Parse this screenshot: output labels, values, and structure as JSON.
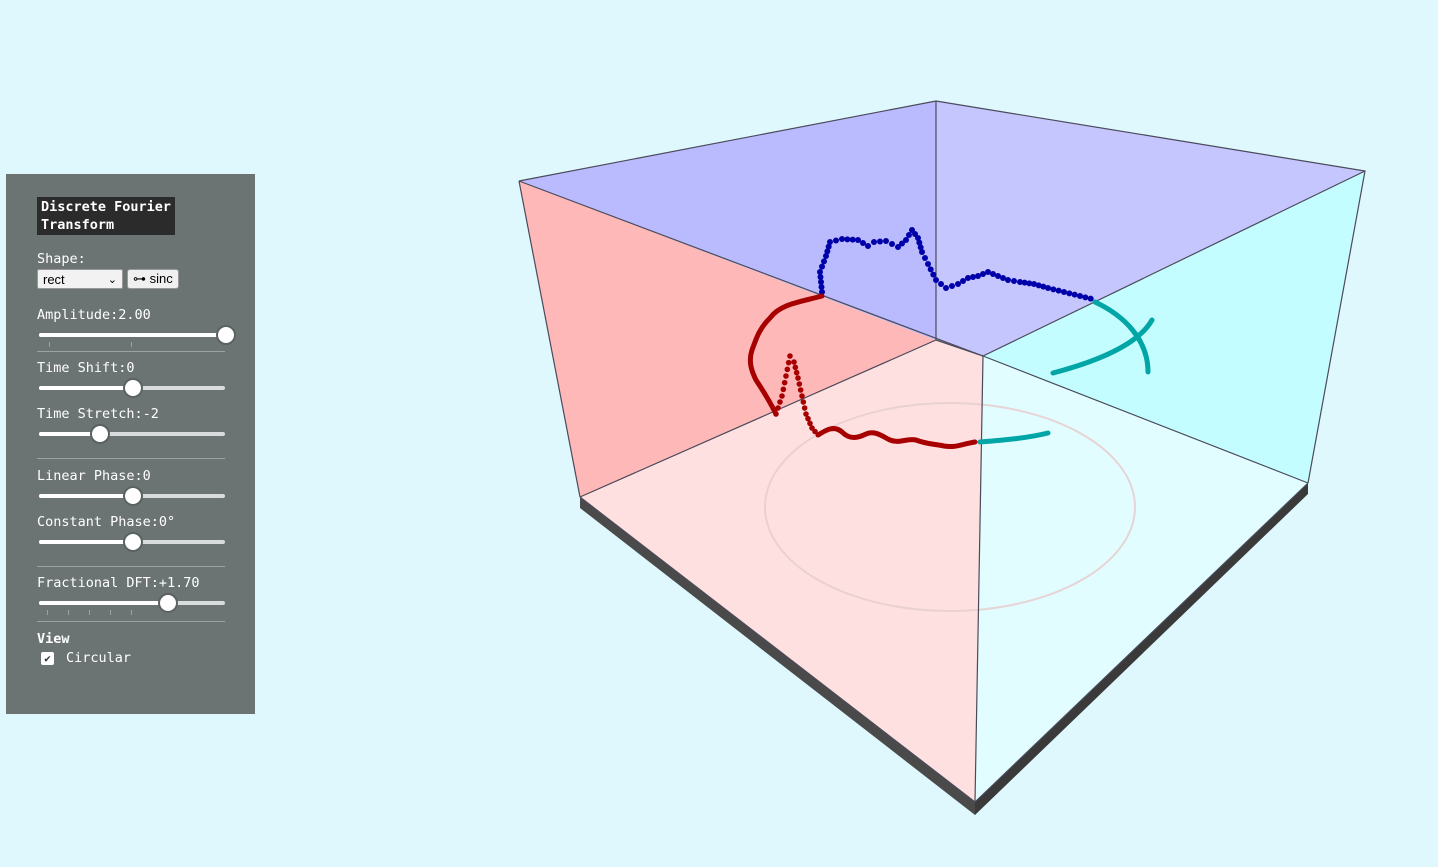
{
  "panel": {
    "title_line1": "Discrete Fourier",
    "title_line2": "Transform",
    "shape_label": "Shape:",
    "shape_selected": "rect",
    "sinc_button": "⊶ sinc",
    "amplitude_label": "Amplitude:",
    "amplitude_value": "2.00",
    "amplitude_level": 1.0,
    "time_shift_label": "Time Shift:",
    "time_shift_value": "0",
    "time_shift_level": 0.5,
    "time_stretch_label": "Time Stretch:",
    "time_stretch_value": "-2",
    "time_stretch_level": 0.32,
    "linear_phase_label": "Linear Phase:",
    "linear_phase_value": "0",
    "linear_phase_level": 0.5,
    "constant_phase_label": "Constant Phase:",
    "constant_phase_value": "0°",
    "constant_phase_level": 0.5,
    "fractional_dft_label": "Fractional DFT:",
    "fractional_dft_value": "+1.70",
    "fractional_dft_level": 0.69,
    "view_label": "View",
    "circular_label": "Circular",
    "circular_checked": true
  },
  "scene": {
    "colors": {
      "background": "#dff8fe",
      "left_wall": "#ffb8b8",
      "back_wall": "#c0c0ff",
      "right_wall": "#c4fdff",
      "floor_left": "#ffe0e0",
      "floor_right": "#e2fdff",
      "time_curve": "#a60000",
      "freq_curve": "#0000aa",
      "teal_curve": "#00a5a5",
      "base": "#4a4a4a"
    }
  }
}
